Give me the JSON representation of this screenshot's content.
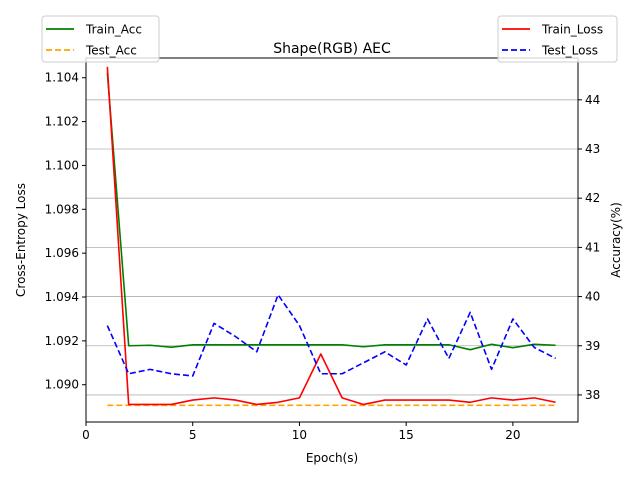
{
  "chart_data": {
    "type": "line",
    "title": "Shape(RGB) AEC",
    "xlabel": "Epoch(s)",
    "ylabel_left": "Cross-Entropy Loss",
    "ylabel_right": "Accuracy(%)",
    "xlim": [
      0,
      23.05
    ],
    "ylim_left": [
      1.0883,
      1.1049
    ],
    "ylim_right": [
      37.45,
      44.85
    ],
    "x_ticks": [
      0,
      5,
      10,
      15,
      20
    ],
    "y_ticks_left": [
      1.09,
      1.092,
      1.094,
      1.096,
      1.098,
      1.1,
      1.102,
      1.104
    ],
    "y_ticks_right": [
      38,
      39,
      40,
      41,
      42,
      43,
      44
    ],
    "grid": "horizontal lines at right-axis ticks",
    "legend_left": {
      "placement": "top-left",
      "entries": [
        "Train_Acc",
        "Test_Acc"
      ]
    },
    "legend_right": {
      "placement": "top-right",
      "entries": [
        "Train_Loss",
        "Test_Loss"
      ]
    },
    "x": [
      1,
      2,
      3,
      4,
      5,
      6,
      7,
      8,
      9,
      10,
      11,
      12,
      13,
      14,
      15,
      16,
      17,
      18,
      19,
      20,
      21,
      22
    ],
    "series": [
      {
        "name": "Train_Acc",
        "axis": "right",
        "color": "#008000",
        "dash": "solid",
        "values": [
          44.55,
          39.0,
          39.01,
          38.97,
          39.02,
          39.02,
          39.02,
          39.02,
          39.02,
          39.02,
          39.02,
          39.02,
          38.98,
          39.02,
          39.02,
          39.02,
          39.02,
          38.92,
          39.03,
          38.96,
          39.03,
          39.01
        ]
      },
      {
        "name": "Test_Acc",
        "axis": "right",
        "color": "#ffa500",
        "dash": "dashed",
        "values": [
          37.79,
          37.79,
          37.79,
          37.79,
          37.79,
          37.79,
          37.79,
          37.79,
          37.79,
          37.79,
          37.79,
          37.79,
          37.79,
          37.79,
          37.79,
          37.79,
          37.79,
          37.79,
          37.79,
          37.79,
          37.79,
          37.79
        ]
      },
      {
        "name": "Train_Loss",
        "axis": "left",
        "color": "#ff0000",
        "dash": "solid",
        "values": [
          1.1045,
          1.0891,
          1.0891,
          1.0891,
          1.0893,
          1.0894,
          1.0893,
          1.0891,
          1.0892,
          1.0894,
          1.0914,
          1.0894,
          1.0891,
          1.0893,
          1.0893,
          1.0893,
          1.0893,
          1.0892,
          1.0894,
          1.0893,
          1.0894,
          1.0892
        ]
      },
      {
        "name": "Test_Loss",
        "axis": "left",
        "color": "#0000ff",
        "dash": "dashed",
        "values": [
          1.0927,
          1.0905,
          1.0907,
          1.0905,
          1.0904,
          1.0928,
          1.0922,
          1.0915,
          1.0941,
          1.0927,
          1.0905,
          1.0905,
          1.091,
          1.0915,
          1.0909,
          1.093,
          1.0912,
          1.0933,
          1.0907,
          1.093,
          1.0917,
          1.0912
        ]
      }
    ]
  }
}
